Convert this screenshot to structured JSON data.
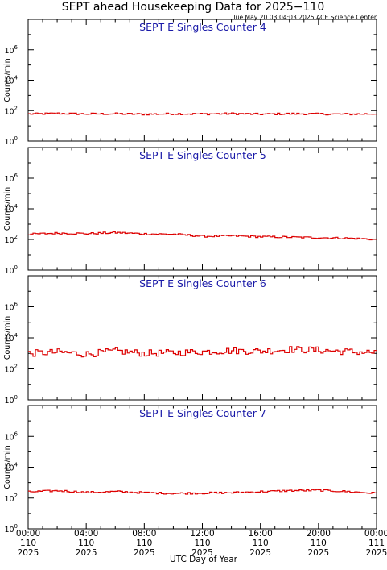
{
  "header": {
    "title": "SEPT ahead Housekeeping Data for 2025−110",
    "timestamp": "Tue May 20 03:04:03 2025 ACE Science Center"
  },
  "colors": {
    "series": "#dd0000",
    "panel_title": "#1a1aa8",
    "axis": "#000000"
  },
  "chart_data": [
    {
      "type": "line",
      "title": "SEPT E Singles Counter 4",
      "ylabel": "Counts/min",
      "yscale": "log",
      "ylim": [
        1,
        100000000
      ],
      "y_ticks": [
        "10^0",
        "10^2",
        "10^4",
        "10^6"
      ],
      "xlim": [
        0,
        24
      ],
      "x_unit": "hours UTC, 2025 day 110",
      "series": [
        {
          "x": [
            0,
            2,
            4,
            6,
            8,
            10,
            12,
            14,
            16,
            18,
            20,
            22,
            24
          ],
          "values": [
            60,
            65,
            60,
            62,
            58,
            62,
            60,
            63,
            58,
            62,
            60,
            58,
            62
          ]
        }
      ]
    },
    {
      "type": "line",
      "title": "SEPT E Singles Counter 5",
      "ylabel": "Counts/min",
      "yscale": "log",
      "ylim": [
        1,
        100000000
      ],
      "y_ticks": [
        "10^0",
        "10^2",
        "10^4",
        "10^6"
      ],
      "xlim": [
        0,
        24
      ],
      "series": [
        {
          "x": [
            0,
            2,
            4,
            6,
            8,
            10,
            12,
            14,
            16,
            18,
            20,
            22,
            24
          ],
          "values": [
            220,
            260,
            240,
            280,
            230,
            220,
            160,
            170,
            150,
            140,
            130,
            120,
            100
          ]
        }
      ]
    },
    {
      "type": "line",
      "title": "SEPT E Singles Counter 6",
      "ylabel": "Counts/min",
      "yscale": "log",
      "ylim": [
        1,
        100000000
      ],
      "y_ticks": [
        "10^0",
        "10^2",
        "10^4",
        "10^6"
      ],
      "xlim": [
        0,
        24
      ],
      "series": [
        {
          "x": [
            0,
            2,
            4,
            6,
            8,
            10,
            12,
            14,
            16,
            18,
            20,
            22,
            24
          ],
          "values": [
            1000,
            1200,
            900,
            1400,
            1000,
            1100,
            1300,
            1500,
            1400,
            1800,
            1600,
            1300,
            1100
          ]
        }
      ]
    },
    {
      "type": "line",
      "title": "SEPT E Singles Counter 7",
      "ylabel": "Counts/min",
      "yscale": "log",
      "ylim": [
        1,
        100000000
      ],
      "y_ticks": [
        "10^0",
        "10^2",
        "10^4",
        "10^6"
      ],
      "xlim": [
        0,
        24
      ],
      "series": [
        {
          "x": [
            0,
            2,
            4,
            6,
            8,
            10,
            12,
            14,
            16,
            18,
            20,
            22,
            24
          ],
          "values": [
            250,
            300,
            230,
            260,
            220,
            200,
            210,
            220,
            260,
            300,
            320,
            260,
            200
          ]
        }
      ]
    }
  ],
  "x_axis": {
    "label": "UTC Day of Year",
    "ticks": [
      {
        "hour": 0,
        "lines": [
          "00:00",
          "110",
          "2025"
        ]
      },
      {
        "hour": 4,
        "lines": [
          "04:00",
          "110",
          "2025"
        ]
      },
      {
        "hour": 8,
        "lines": [
          "08:00",
          "110",
          "2025"
        ]
      },
      {
        "hour": 12,
        "lines": [
          "12:00",
          "110",
          "2025"
        ]
      },
      {
        "hour": 16,
        "lines": [
          "16:00",
          "110",
          "2025"
        ]
      },
      {
        "hour": 20,
        "lines": [
          "20:00",
          "110",
          "2025"
        ]
      },
      {
        "hour": 24,
        "lines": [
          "00:00",
          "111",
          "2025"
        ]
      }
    ]
  }
}
